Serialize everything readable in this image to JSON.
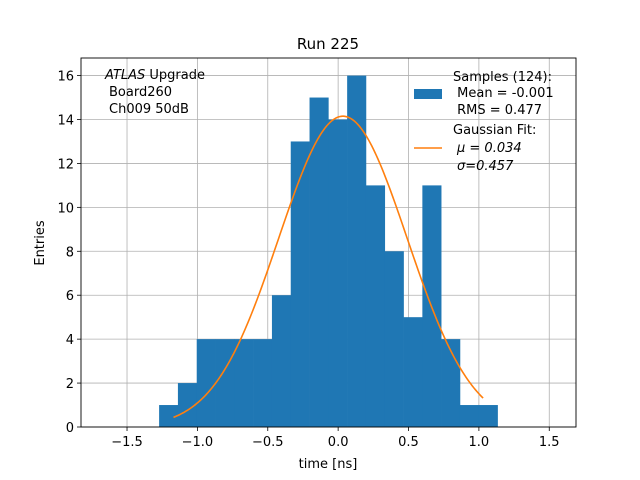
{
  "chart_data": {
    "type": "bar",
    "title": "Run 225",
    "xlabel": "time [ns]",
    "ylabel": "Entries",
    "xlim": [
      -1.827,
      1.69
    ],
    "ylim": [
      0,
      16.8
    ],
    "grid": true,
    "bin_start": -1.272,
    "bin_width": 0.1336,
    "counts": [
      1,
      2,
      4,
      4,
      4,
      4,
      6,
      13,
      15,
      14,
      16,
      11,
      8,
      5,
      11,
      4,
      1,
      1
    ],
    "xticks": [
      -1.5,
      -1.0,
      -0.5,
      0.0,
      0.5,
      1.0,
      1.5
    ],
    "xtick_labels": [
      "−1.5",
      "−1.0",
      "−0.5",
      "0.0",
      "0.5",
      "1.0",
      "1.5"
    ],
    "yticks": [
      0,
      2,
      4,
      6,
      8,
      10,
      12,
      14,
      16
    ],
    "fit": {
      "mu": 0.034,
      "sigma": 0.457,
      "amplitude": 14.15,
      "x_range": [
        -1.17,
        1.03
      ]
    },
    "colors": {
      "hist": "#1f77b4",
      "fit": "#ff7f0e",
      "grid": "#b0b0b0"
    },
    "annotation": {
      "line1_italic": "ATLAS",
      "line1_rest": " Upgrade",
      "line2": "Board260",
      "line3": "Ch009 50dB"
    },
    "legend": {
      "placement": "top-right",
      "hist_lines": [
        "Samples (124):",
        " Mean = -0.001",
        " RMS = 0.477"
      ],
      "fit_lines": [
        "Gaussian Fit:",
        "μ = 0.034",
        "σ=0.457"
      ]
    }
  }
}
